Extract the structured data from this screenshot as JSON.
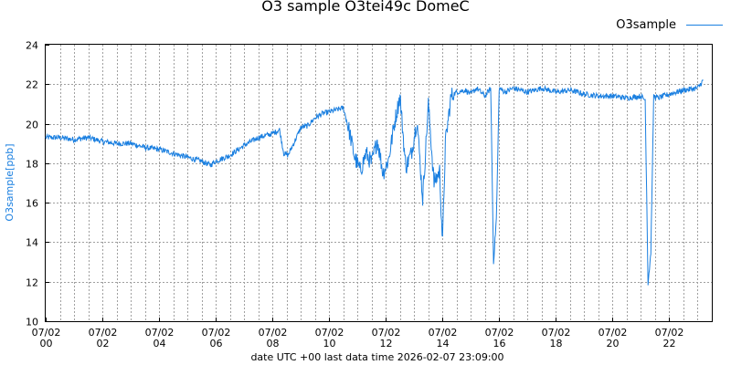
{
  "chart_data": {
    "type": "line",
    "title": "O3 sample O3tei49c DomeC",
    "xlabel": "date UTC +00 last data time 2026-02-07 23:09:00",
    "ylabel": "O3sample[ppb]",
    "ylim": [
      10,
      24
    ],
    "yticks": [
      10,
      12,
      14,
      16,
      18,
      20,
      22,
      24
    ],
    "xlim": [
      0,
      23.5
    ],
    "xticks": [
      {
        "x": 0,
        "line1": "07/02",
        "line2": "00"
      },
      {
        "x": 2,
        "line1": "07/02",
        "line2": "02"
      },
      {
        "x": 4,
        "line1": "07/02",
        "line2": "04"
      },
      {
        "x": 6,
        "line1": "07/02",
        "line2": "06"
      },
      {
        "x": 8,
        "line1": "07/02",
        "line2": "08"
      },
      {
        "x": 10,
        "line1": "07/02",
        "line2": "10"
      },
      {
        "x": 12,
        "line1": "07/02",
        "line2": "12"
      },
      {
        "x": 14,
        "line1": "07/02",
        "line2": "14"
      },
      {
        "x": 16,
        "line1": "07/02",
        "line2": "16"
      },
      {
        "x": 18,
        "line1": "07/02",
        "line2": "18"
      },
      {
        "x": 20,
        "line1": "07/02",
        "line2": "20"
      },
      {
        "x": 22,
        "line1": "07/02",
        "line2": "22"
      }
    ],
    "grid": true,
    "legend_position": "top-right",
    "series": [
      {
        "name": "O3sample",
        "color": "#1a7fe0",
        "x": [
          0.0,
          0.5,
          1.0,
          1.5,
          2.0,
          2.5,
          3.0,
          3.5,
          4.0,
          4.5,
          5.0,
          5.5,
          5.8,
          6.0,
          6.5,
          7.0,
          7.5,
          8.0,
          8.25,
          8.4,
          8.55,
          8.75,
          9.0,
          9.25,
          9.5,
          9.75,
          10.0,
          10.5,
          10.7,
          10.9,
          11.1,
          11.3,
          11.5,
          11.7,
          11.9,
          12.1,
          12.3,
          12.5,
          12.7,
          12.9,
          13.1,
          13.3,
          13.5,
          13.7,
          13.9,
          14.0,
          14.1,
          14.3,
          14.5,
          14.8,
          15.0,
          15.2,
          15.5,
          15.7,
          15.8,
          15.9,
          16.0,
          16.2,
          16.5,
          17.0,
          17.5,
          18.0,
          18.5,
          19.0,
          19.5,
          20.0,
          20.5,
          21.0,
          21.15,
          21.25,
          21.35,
          21.45,
          21.6,
          22.0,
          22.5,
          23.0,
          23.2
        ],
        "y": [
          19.3,
          19.3,
          19.2,
          19.3,
          19.1,
          19.0,
          19.0,
          18.8,
          18.7,
          18.5,
          18.3,
          18.1,
          17.9,
          18.1,
          18.4,
          18.9,
          19.3,
          19.5,
          19.7,
          18.5,
          18.4,
          19.0,
          19.8,
          19.9,
          20.3,
          20.5,
          20.6,
          20.8,
          19.7,
          18.3,
          17.6,
          18.5,
          18.0,
          19.2,
          17.5,
          18.2,
          20.0,
          21.4,
          17.8,
          18.5,
          20.2,
          16.2,
          21.0,
          17.0,
          17.6,
          13.9,
          19.0,
          21.4,
          21.6,
          21.7,
          21.5,
          21.8,
          21.4,
          21.8,
          13.0,
          15.2,
          21.8,
          21.6,
          21.8,
          21.6,
          21.8,
          21.6,
          21.7,
          21.5,
          21.4,
          21.4,
          21.3,
          21.4,
          21.2,
          11.9,
          13.5,
          21.4,
          21.3,
          21.5,
          21.7,
          21.8,
          22.2
        ]
      }
    ]
  }
}
